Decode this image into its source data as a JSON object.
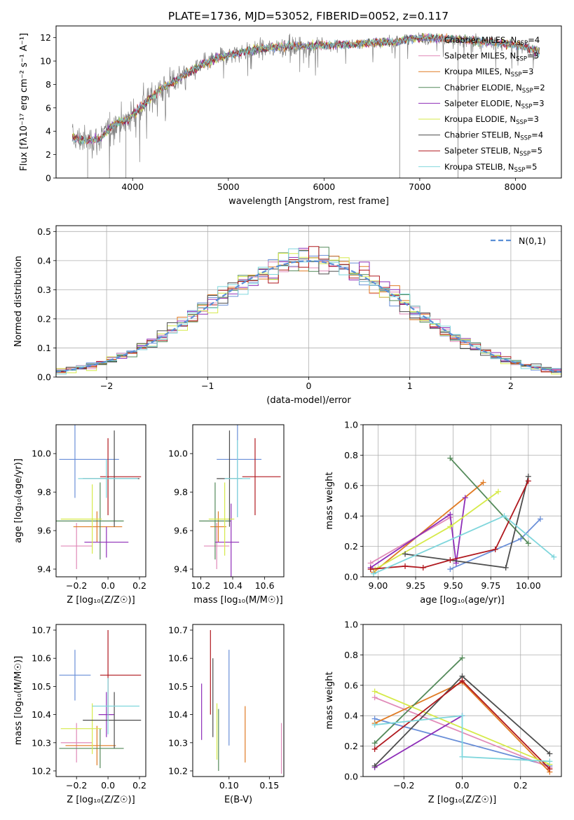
{
  "figure": {
    "title": "PLATE=1736, MJD=53052, FIBERID=0052, z=0.117"
  },
  "model_colors": {
    "Chabrier MILES": "#6a8fd8",
    "Salpeter MILES": "#e08ab8",
    "Kroupa MILES": "#e07b24",
    "Chabrier ELODIE": "#548a5a",
    "Salpeter ELODIE": "#8e2eb8",
    "Kroupa ELODIE": "#d6ea4a",
    "Chabrier STELIB": "#4d4d4d",
    "Salpeter STELIB": "#b0191f",
    "Kroupa STELIB": "#7fd6dc"
  },
  "chart_data": [
    {
      "id": "spectrum",
      "type": "line",
      "title": "PLATE=1736, MJD=53052, FIBERID=0052, z=0.117",
      "xlabel": "wavelength [Angstrom, rest frame]",
      "ylabel": "Flux [fλ10⁻¹⁷ erg cm⁻² s⁻¹ A⁻¹]",
      "xlim": [
        3200,
        8480
      ],
      "ylim": [
        0,
        13
      ],
      "xticks": [
        4000,
        5000,
        6000,
        7000,
        8000
      ],
      "yticks": [
        0,
        2,
        4,
        6,
        8,
        10,
        12
      ],
      "grid": false,
      "legend_position": "right",
      "data_color": "#808080",
      "continuum": {
        "x": [
          3370,
          3500,
          3650,
          3800,
          3950,
          4100,
          4300,
          4500,
          4700,
          4900,
          5100,
          5300,
          5500,
          5700,
          5900,
          6100,
          6300,
          6500,
          6700,
          6900,
          7100,
          7300,
          7500,
          7700,
          7900,
          8100,
          8250
        ],
        "y": [
          3.5,
          3.2,
          3.3,
          4.6,
          5.0,
          6.2,
          7.6,
          8.6,
          9.6,
          10.3,
          10.7,
          11.0,
          11.2,
          11.3,
          11.3,
          11.4,
          11.4,
          11.6,
          11.6,
          11.9,
          12.0,
          11.9,
          11.8,
          11.6,
          11.5,
          11.2,
          10.8
        ]
      },
      "spikes": [
        {
          "x": 3530,
          "y": 0.0
        },
        {
          "x": 3930,
          "y": 0.0
        },
        {
          "x": 6790,
          "y": 0.0
        },
        {
          "x": 7400,
          "y": 0.0
        }
      ],
      "series": [
        {
          "name": "Chabrier MILES",
          "nssp": "4"
        },
        {
          "name": "Salpeter MILES",
          "nssp": "3"
        },
        {
          "name": "Kroupa MILES",
          "nssp": "3"
        },
        {
          "name": "Chabrier ELODIE",
          "nssp": "2"
        },
        {
          "name": "Salpeter ELODIE",
          "nssp": "3"
        },
        {
          "name": "Kroupa ELODIE",
          "nssp": "3"
        },
        {
          "name": "Chabrier STELIB",
          "nssp": "4"
        },
        {
          "name": "Salpeter STELIB",
          "nssp": "5"
        },
        {
          "name": "Kroupa STELIB",
          "nssp": "5"
        }
      ]
    },
    {
      "id": "residuals",
      "type": "line",
      "xlabel": "(data-model)/error",
      "ylabel": "Normed distribution",
      "xlim": [
        -2.5,
        2.5
      ],
      "ylim": [
        0,
        0.52
      ],
      "xticks": [
        -2,
        -1,
        0,
        1,
        2
      ],
      "yticks": [
        0.0,
        0.1,
        0.2,
        0.3,
        0.4,
        0.5
      ],
      "grid": true,
      "legend_position": "upper right",
      "legend_label": "N(0,1)",
      "bin_width": 0.1,
      "histogram_series": [
        "Chabrier MILES",
        "Salpeter MILES",
        "Kroupa MILES",
        "Chabrier ELODIE",
        "Salpeter ELODIE",
        "Kroupa ELODIE",
        "Chabrier STELIB",
        "Salpeter STELIB",
        "Kroupa STELIB"
      ]
    },
    {
      "id": "age_vs_Z",
      "type": "scatter",
      "xlabel": "Z [log₁₀(Z/Z☉)]",
      "ylabel": "age  [log₁₀(age/yr)]",
      "xlim": [
        -0.33,
        0.24
      ],
      "ylim": [
        9.36,
        10.15
      ],
      "xticks": [
        -0.2,
        0.0,
        0.2
      ],
      "yticks": [
        9.4,
        9.6,
        9.8,
        10.0
      ],
      "grid": false,
      "errorbars": [
        {
          "series": "Chabrier MILES",
          "x": -0.21,
          "xerr": [
            0.1,
            0.28
          ],
          "y": 9.97,
          "yerr": [
            0.2,
            0.2
          ]
        },
        {
          "series": "Salpeter MILES",
          "x": -0.2,
          "xerr": [
            0.1,
            0.1
          ],
          "y": 9.52,
          "yerr": [
            0.12,
            0.12
          ]
        },
        {
          "series": "Kroupa MILES",
          "x": -0.07,
          "xerr": [
            0.15,
            0.16
          ],
          "y": 9.62,
          "yerr": [
            0.08,
            0.08
          ]
        },
        {
          "series": "Chabrier ELODIE",
          "x": -0.05,
          "xerr": [
            0.28,
            0.15
          ],
          "y": 9.65,
          "yerr": [
            0.2,
            0.2
          ]
        },
        {
          "series": "Salpeter ELODIE",
          "x": -0.01,
          "xerr": [
            0.14,
            0.14
          ],
          "y": 9.54,
          "yerr": [
            0.08,
            0.08
          ]
        },
        {
          "series": "Kroupa ELODIE",
          "x": -0.1,
          "xerr": [
            0.2,
            0.06
          ],
          "y": 9.66,
          "yerr": [
            0.18,
            0.18
          ]
        },
        {
          "series": "Chabrier STELIB",
          "x": 0.04,
          "xerr": [
            0.2,
            0.16
          ],
          "y": 9.87,
          "yerr": [
            0.25,
            0.25
          ]
        },
        {
          "series": "Salpeter STELIB",
          "x": 0.0,
          "xerr": [
            0.05,
            0.21
          ],
          "y": 9.88,
          "yerr": [
            0.2,
            0.2
          ]
        },
        {
          "series": "Kroupa STELIB",
          "x": -0.01,
          "xerr": [
            0.18,
            0.2
          ],
          "y": 9.87,
          "yerr": [
            0.1,
            0.1
          ]
        }
      ]
    },
    {
      "id": "age_vs_mass",
      "type": "scatter",
      "xlabel": "mass [log₁₀(M/M☉)]",
      "ylabel": "",
      "xlim": [
        10.15,
        10.72
      ],
      "ylim": [
        9.36,
        10.15
      ],
      "xticks": [
        10.2,
        10.4,
        10.6
      ],
      "yticks": [
        9.4,
        9.6,
        9.8,
        10.0
      ],
      "grid": false,
      "errorbars": [
        {
          "series": "Chabrier MILES",
          "x": 10.43,
          "xerr": [
            0.13,
            0.15
          ],
          "y": 9.97,
          "yerr": [
            0.3,
            0.3
          ]
        },
        {
          "series": "Salpeter MILES",
          "x": 10.3,
          "xerr": [
            0.08,
            0.08
          ],
          "y": 9.52,
          "yerr": [
            0.12,
            0.12
          ]
        },
        {
          "series": "Kroupa MILES",
          "x": 10.31,
          "xerr": [
            0.05,
            0.05
          ],
          "y": 9.62,
          "yerr": [
            0.08,
            0.08
          ]
        },
        {
          "series": "Chabrier ELODIE",
          "x": 10.29,
          "xerr": [
            0.1,
            0.1
          ],
          "y": 9.65,
          "yerr": [
            0.2,
            0.2
          ]
        },
        {
          "series": "Salpeter ELODIE",
          "x": 10.39,
          "xerr": [
            0.1,
            0.05
          ],
          "y": 9.54,
          "yerr": [
            0.2,
            0.2
          ]
        },
        {
          "series": "Kroupa ELODIE",
          "x": 10.35,
          "xerr": [
            0.1,
            0.06
          ],
          "y": 9.66,
          "yerr": [
            0.19,
            0.19
          ]
        },
        {
          "series": "Chabrier STELIB",
          "x": 10.38,
          "xerr": [
            0.08,
            0.08
          ],
          "y": 9.87,
          "yerr": [
            0.25,
            0.25
          ]
        },
        {
          "series": "Salpeter STELIB",
          "x": 10.54,
          "xerr": [
            0.08,
            0.16
          ],
          "y": 9.88,
          "yerr": [
            0.2,
            0.2
          ]
        },
        {
          "series": "Kroupa STELIB",
          "x": 10.43,
          "xerr": [
            0.08,
            0.08
          ],
          "y": 9.87,
          "yerr": [
            0.2,
            0.2
          ]
        }
      ]
    },
    {
      "id": "massweight_vs_age",
      "type": "line",
      "xlabel": "age  [log₁₀(age/yr)]",
      "ylabel": "mass weight",
      "xlim": [
        8.9,
        10.22
      ],
      "ylim": [
        0,
        1
      ],
      "xticks": [
        9.0,
        9.25,
        9.5,
        9.75,
        10.0
      ],
      "yticks": [
        0.0,
        0.2,
        0.4,
        0.6,
        0.8,
        1.0
      ],
      "grid": true,
      "series": [
        {
          "name": "Chabrier MILES",
          "x": [
            9.48,
            9.95,
            10.08
          ],
          "y": [
            0.05,
            0.25,
            0.38
          ]
        },
        {
          "name": "Salpeter MILES",
          "x": [
            8.95,
            9.48
          ],
          "y": [
            0.09,
            0.39
          ]
        },
        {
          "name": "Kroupa MILES",
          "x": [
            8.97,
            9.7
          ],
          "y": [
            0.03,
            0.62
          ]
        },
        {
          "name": "Chabrier ELODIE",
          "x": [
            9.48,
            10.0
          ],
          "y": [
            0.78,
            0.22
          ]
        },
        {
          "name": "Salpeter ELODIE",
          "x": [
            8.95,
            9.48,
            9.52,
            9.58
          ],
          "y": [
            0.06,
            0.41,
            0.09,
            0.52
          ]
        },
        {
          "name": "Kroupa ELODIE",
          "x": [
            8.98,
            9.48,
            9.8
          ],
          "y": [
            0.05,
            0.33,
            0.56
          ]
        },
        {
          "name": "Chabrier STELIB",
          "x": [
            9.18,
            9.85,
            10.0
          ],
          "y": [
            0.15,
            0.06,
            0.66
          ]
        },
        {
          "name": "Salpeter STELIB",
          "x": [
            8.95,
            9.18,
            9.3,
            9.48,
            9.78,
            10.0
          ],
          "y": [
            0.05,
            0.07,
            0.06,
            0.11,
            0.18,
            0.63
          ]
        },
        {
          "name": "Kroupa STELIB",
          "x": [
            8.97,
            9.84,
            10.17
          ],
          "y": [
            0.02,
            0.4,
            0.13
          ]
        }
      ]
    },
    {
      "id": "mass_vs_Z",
      "type": "scatter",
      "xlabel": "Z [log₁₀(Z/Z☉)]",
      "ylabel": "mass [log₁₀(M/M☉)]",
      "xlim": [
        -0.33,
        0.24
      ],
      "ylim": [
        10.18,
        10.72
      ],
      "xticks": [
        -0.2,
        0.0,
        0.2
      ],
      "yticks": [
        10.2,
        10.3,
        10.4,
        10.5,
        10.6,
        10.7
      ],
      "grid": false,
      "errorbars": [
        {
          "series": "Chabrier MILES",
          "x": -0.21,
          "xerr": [
            0.1,
            0.1
          ],
          "y": 10.54,
          "yerr": [
            0.09,
            0.09
          ]
        },
        {
          "series": "Salpeter MILES",
          "x": -0.2,
          "xerr": [
            0.1,
            0.1
          ],
          "y": 10.3,
          "yerr": [
            0.07,
            0.07
          ]
        },
        {
          "series": "Kroupa MILES",
          "x": -0.07,
          "xerr": [
            0.2,
            0.12
          ],
          "y": 10.29,
          "yerr": [
            0.07,
            0.07
          ]
        },
        {
          "series": "Chabrier ELODIE",
          "x": -0.05,
          "xerr": [
            0.26,
            0.15
          ],
          "y": 10.28,
          "yerr": [
            0.07,
            0.07
          ]
        },
        {
          "series": "Salpeter ELODIE",
          "x": -0.01,
          "xerr": [
            0.05,
            0.05
          ],
          "y": 10.4,
          "yerr": [
            0.08,
            0.08
          ]
        },
        {
          "series": "Kroupa ELODIE",
          "x": -0.1,
          "xerr": [
            0.2,
            0.06
          ],
          "y": 10.35,
          "yerr": [
            0.09,
            0.09
          ]
        },
        {
          "series": "Chabrier STELIB",
          "x": 0.04,
          "xerr": [
            0.2,
            0.17
          ],
          "y": 10.38,
          "yerr": [
            0.1,
            0.1
          ]
        },
        {
          "series": "Salpeter STELIB",
          "x": 0.0,
          "xerr": [
            0.05,
            0.21
          ],
          "y": 10.54,
          "yerr": [
            0.16,
            0.16
          ]
        },
        {
          "series": "Kroupa STELIB",
          "x": 0.0,
          "xerr": [
            0.1,
            0.2
          ],
          "y": 10.43,
          "yerr": [
            0.1,
            0.1
          ]
        }
      ]
    },
    {
      "id": "mass_vs_ebv",
      "type": "scatter",
      "xlabel": "E(B-V)",
      "ylabel": "",
      "xlim": [
        0.055,
        0.168
      ],
      "ylim": [
        10.18,
        10.72
      ],
      "xticks": [
        0.05,
        0.1,
        0.15
      ],
      "yticks": [
        10.2,
        10.3,
        10.4,
        10.5,
        10.6,
        10.7
      ],
      "grid": false,
      "errorbars": [
        {
          "series": "Salpeter ELODIE",
          "x": 0.066,
          "y": 10.41,
          "yerr": [
            0.1,
            0.1
          ]
        },
        {
          "series": "Salpeter STELIB",
          "x": 0.077,
          "y": 10.55,
          "yerr": [
            0.15,
            0.15
          ]
        },
        {
          "series": "Chabrier STELIB",
          "x": 0.08,
          "y": 10.46,
          "yerr": [
            0.14,
            0.14
          ]
        },
        {
          "series": "Kroupa ELODIE",
          "x": 0.085,
          "y": 10.34,
          "yerr": [
            0.1,
            0.1
          ]
        },
        {
          "series": "Chabrier ELODIE",
          "x": 0.087,
          "y": 10.31,
          "yerr": [
            0.11,
            0.11
          ]
        },
        {
          "series": "Chabrier MILES",
          "x": 0.1,
          "y": 10.46,
          "yerr": [
            0.17,
            0.17
          ]
        },
        {
          "series": "Kroupa MILES",
          "x": 0.12,
          "y": 10.33,
          "yerr": [
            0.1,
            0.1
          ]
        },
        {
          "series": "Salpeter MILES",
          "x": 0.165,
          "y": 10.28,
          "yerr": [
            0.09,
            0.09
          ]
        }
      ]
    },
    {
      "id": "massweight_vs_Z",
      "type": "line",
      "xlabel": "Z [log₁₀(Z/Z☉)]",
      "ylabel": "mass weight",
      "xlim": [
        -0.34,
        0.34
      ],
      "ylim": [
        0,
        1
      ],
      "xticks": [
        -0.2,
        0.0,
        0.2
      ],
      "yticks": [
        0.0,
        0.2,
        0.4,
        0.6,
        0.8,
        1.0
      ],
      "grid": true,
      "series": [
        {
          "name": "Chabrier MILES",
          "x": [
            -0.3,
            0.3
          ],
          "y": [
            0.38,
            0.07
          ]
        },
        {
          "name": "Salpeter MILES",
          "x": [
            -0.3,
            0.3
          ],
          "y": [
            0.52,
            0.06
          ]
        },
        {
          "name": "Kroupa MILES",
          "x": [
            -0.3,
            0.0,
            0.3
          ],
          "y": [
            0.35,
            0.62,
            0.03
          ]
        },
        {
          "name": "Chabrier ELODIE",
          "x": [
            -0.3,
            0.0
          ],
          "y": [
            0.22,
            0.78
          ]
        },
        {
          "name": "Salpeter ELODIE",
          "x": [
            -0.3,
            0.0
          ],
          "y": [
            0.06,
            0.4
          ]
        },
        {
          "name": "Kroupa ELODIE",
          "x": [
            -0.3,
            0.3
          ],
          "y": [
            0.56,
            0.08
          ]
        },
        {
          "name": "Chabrier STELIB",
          "x": [
            -0.3,
            0.0,
            0.3
          ],
          "y": [
            0.07,
            0.66,
            0.15
          ]
        },
        {
          "name": "Salpeter STELIB",
          "x": [
            -0.3,
            0.0,
            0.3
          ],
          "y": [
            0.18,
            0.63,
            0.05
          ]
        },
        {
          "name": "Kroupa STELIB",
          "x": [
            -0.3,
            0.0,
            0.0,
            0.3
          ],
          "y": [
            0.34,
            0.4,
            0.13,
            0.1
          ]
        }
      ]
    }
  ]
}
